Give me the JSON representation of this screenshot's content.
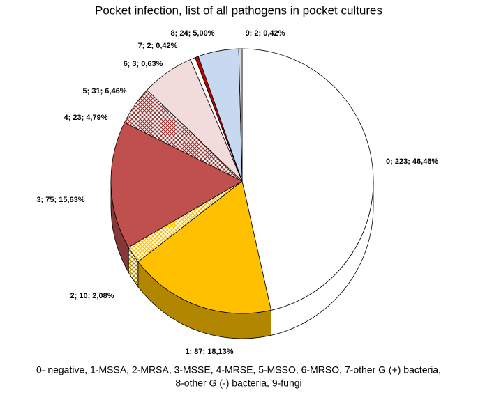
{
  "chart_data": {
    "type": "pie3d",
    "title": "Pocket infection, list of all pathogens in pocket cultures",
    "values": [
      223,
      87,
      10,
      75,
      23,
      31,
      3,
      2,
      24,
      2
    ],
    "value_labels": [
      "0; 223; 46,46%",
      "1; 87; 18,13%",
      "2; 10; 2,08%",
      "3; 75; 15,63%",
      "4; 23; 4,79%",
      "5; 31; 6,46%",
      "6; 3; 0,63%",
      "7; 2; 0,42%",
      "8; 24; 5,00%",
      "9; 2; 0,42%"
    ],
    "colors": [
      "#ffffff",
      "#ffc000",
      "#ffc000",
      "#c0504d",
      "#953735",
      "#f2dcdb",
      "#ffffff",
      "#c00000",
      "#c6d9f1",
      "#d9d9d9"
    ],
    "hatched": [
      false,
      false,
      true,
      false,
      true,
      false,
      false,
      false,
      false,
      false
    ],
    "caption": [
      "0- negative, 1-MSSA, 2-MRSA, 3-MSSE, 4-MRSE, 5-MSSO, 6-MRSO, 7-other G (+) bacteria,",
      "8-other G (-) bacteria, 9-fungi"
    ]
  }
}
